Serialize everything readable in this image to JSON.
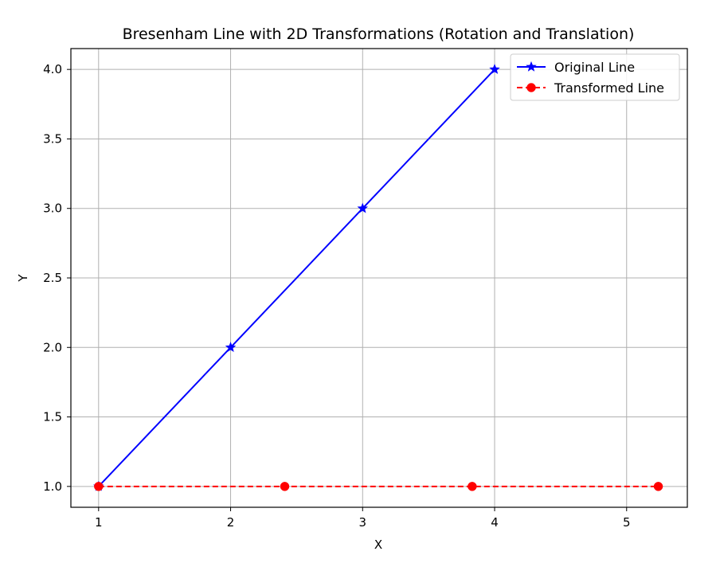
{
  "chart_data": {
    "type": "line",
    "title": "Bresenham Line with 2D Transformations (Rotation and Translation)",
    "xlabel": "X",
    "ylabel": "Y",
    "xlim": [
      0.79,
      5.46
    ],
    "ylim": [
      0.85,
      4.15
    ],
    "xticks": [
      1,
      2,
      3,
      4,
      5
    ],
    "xtick_labels": [
      "1",
      "2",
      "3",
      "4",
      "5"
    ],
    "yticks": [
      1.0,
      1.5,
      2.0,
      2.5,
      3.0,
      3.5,
      4.0
    ],
    "ytick_labels": [
      "1.0",
      "1.5",
      "2.0",
      "2.5",
      "3.0",
      "3.5",
      "4.0"
    ],
    "grid": true,
    "legend_position": "top-right",
    "series": [
      {
        "name": "Original Line",
        "color": "#0000ff",
        "linestyle": "solid",
        "marker": "star",
        "x": [
          1,
          2,
          3,
          4
        ],
        "y": [
          1,
          2,
          3,
          4
        ]
      },
      {
        "name": "Transformed Line",
        "color": "#ff0000",
        "linestyle": "dashed",
        "marker": "circle",
        "x": [
          1.0,
          2.41,
          3.83,
          5.24
        ],
        "y": [
          1.0,
          1.0,
          1.0,
          1.0
        ]
      }
    ]
  }
}
